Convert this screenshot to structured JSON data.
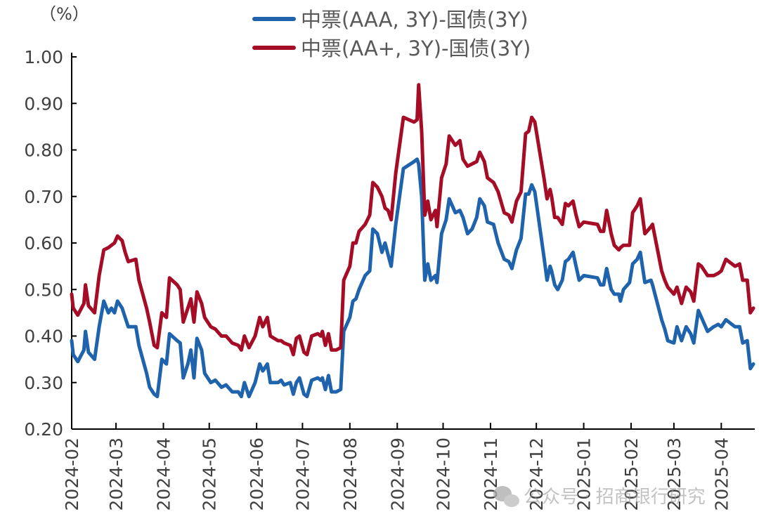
{
  "chart_data": {
    "type": "line",
    "title": "",
    "unit_label": "（%）",
    "xlabel": "",
    "ylabel": "",
    "ylim": [
      0.2,
      1.0
    ],
    "y_ticks": [
      "0.20",
      "0.30",
      "0.40",
      "0.50",
      "0.60",
      "0.70",
      "0.80",
      "0.90",
      "1.00"
    ],
    "x_range": [
      "2024-02-01",
      "2025-04-22"
    ],
    "x_ticks": [
      "2024-02",
      "2024-03",
      "2024-04",
      "2024-05",
      "2024-06",
      "2024-07",
      "2024-08",
      "2024-09",
      "2024-10",
      "2024-11",
      "2024-12",
      "2025-01",
      "2025-02",
      "2025-03",
      "2025-04"
    ],
    "grid": false,
    "legend_placement": "top",
    "x": [
      "2024-02-01",
      "2024-02-02",
      "2024-02-05",
      "2024-02-09",
      "2024-02-10",
      "2024-02-12",
      "2024-02-16",
      "2024-02-19",
      "2024-02-22",
      "2024-02-25",
      "2024-02-27",
      "2024-02-29",
      "2024-03-02",
      "2024-03-05",
      "2024-03-07",
      "2024-03-09",
      "2024-03-14",
      "2024-03-16",
      "2024-03-21",
      "2024-03-23",
      "2024-03-26",
      "2024-03-28",
      "2024-03-31",
      "2024-04-03",
      "2024-04-05",
      "2024-04-10",
      "2024-04-12",
      "2024-04-14",
      "2024-04-17",
      "2024-04-19",
      "2024-04-21",
      "2024-04-23",
      "2024-04-26",
      "2024-04-28",
      "2024-05-02",
      "2024-05-05",
      "2024-05-09",
      "2024-05-12",
      "2024-05-16",
      "2024-05-20",
      "2024-05-22",
      "2024-05-24",
      "2024-05-27",
      "2024-05-31",
      "2024-06-03",
      "2024-06-05",
      "2024-06-08",
      "2024-06-10",
      "2024-06-15",
      "2024-06-17",
      "2024-06-19",
      "2024-06-23",
      "2024-06-25",
      "2024-06-27",
      "2024-06-29",
      "2024-07-02",
      "2024-07-04",
      "2024-07-07",
      "2024-07-11",
      "2024-07-13",
      "2024-07-14",
      "2024-07-16",
      "2024-07-18",
      "2024-07-20",
      "2024-07-23",
      "2024-07-26",
      "2024-07-28",
      "2024-08-01",
      "2024-08-03",
      "2024-08-05",
      "2024-08-07",
      "2024-08-11",
      "2024-08-14",
      "2024-08-16",
      "2024-08-19",
      "2024-08-22",
      "2024-08-24",
      "2024-08-26",
      "2024-08-28",
      "2024-08-31",
      "2024-09-05",
      "2024-09-12",
      "2024-09-14",
      "2024-09-15",
      "2024-09-17",
      "2024-09-19",
      "2024-09-21",
      "2024-09-23",
      "2024-09-26",
      "2024-09-27",
      "2024-09-30",
      "2024-10-03",
      "2024-10-05",
      "2024-10-09",
      "2024-10-12",
      "2024-10-14",
      "2024-10-17",
      "2024-10-20",
      "2024-10-23",
      "2024-10-25",
      "2024-10-28",
      "2024-10-30",
      "2024-11-03",
      "2024-11-06",
      "2024-11-10",
      "2024-11-13",
      "2024-11-15",
      "2024-11-18",
      "2024-11-21",
      "2024-11-24",
      "2024-11-26",
      "2024-11-28",
      "2024-11-30",
      "2024-12-03",
      "2024-12-06",
      "2024-12-08",
      "2024-12-10",
      "2024-12-11",
      "2024-12-13",
      "2024-12-15",
      "2024-12-18",
      "2024-12-20",
      "2024-12-22",
      "2024-12-25",
      "2024-12-27",
      "2024-12-29",
      "2025-01-01",
      "2025-01-10",
      "2025-01-12",
      "2025-01-14",
      "2025-01-16",
      "2025-01-19",
      "2025-01-21",
      "2025-01-24",
      "2025-01-25",
      "2025-01-27",
      "2025-01-31",
      "2025-02-02",
      "2025-02-05",
      "2025-02-07",
      "2025-02-10",
      "2025-02-14",
      "2025-02-15",
      "2025-02-21",
      "2025-02-23",
      "2025-02-25",
      "2025-03-01",
      "2025-03-03",
      "2025-03-06",
      "2025-03-09",
      "2025-03-12",
      "2025-03-14",
      "2025-03-17",
      "2025-03-19",
      "2025-03-23",
      "2025-03-27",
      "2025-03-30",
      "2025-04-01",
      "2025-04-04",
      "2025-04-10",
      "2025-04-13",
      "2025-04-15",
      "2025-04-18",
      "2025-04-20",
      "2025-04-22"
    ],
    "series": [
      {
        "name": "中票(AAA, 3Y)-国债(3Y)",
        "color": "#1f63ad",
        "values": [
          0.39,
          0.36,
          0.345,
          0.37,
          0.41,
          0.365,
          0.35,
          0.42,
          0.475,
          0.45,
          0.46,
          0.45,
          0.475,
          0.46,
          0.44,
          0.42,
          0.42,
          0.38,
          0.32,
          0.29,
          0.275,
          0.27,
          0.35,
          0.34,
          0.405,
          0.39,
          0.385,
          0.31,
          0.34,
          0.37,
          0.31,
          0.395,
          0.37,
          0.32,
          0.3,
          0.305,
          0.29,
          0.295,
          0.28,
          0.28,
          0.27,
          0.3,
          0.27,
          0.3,
          0.34,
          0.325,
          0.34,
          0.3,
          0.3,
          0.305,
          0.295,
          0.3,
          0.275,
          0.3,
          0.31,
          0.275,
          0.27,
          0.305,
          0.31,
          0.305,
          0.31,
          0.285,
          0.315,
          0.28,
          0.28,
          0.285,
          0.41,
          0.44,
          0.475,
          0.48,
          0.5,
          0.53,
          0.54,
          0.63,
          0.62,
          0.58,
          0.6,
          0.575,
          0.55,
          0.64,
          0.76,
          0.775,
          0.78,
          0.77,
          0.7,
          0.52,
          0.555,
          0.52,
          0.53,
          0.515,
          0.62,
          0.65,
          0.695,
          0.665,
          0.67,
          0.655,
          0.62,
          0.63,
          0.655,
          0.695,
          0.68,
          0.645,
          0.64,
          0.6,
          0.565,
          0.56,
          0.545,
          0.585,
          0.61,
          0.705,
          0.705,
          0.725,
          0.71,
          0.64,
          0.57,
          0.52,
          0.55,
          0.54,
          0.51,
          0.5,
          0.52,
          0.56,
          0.565,
          0.58,
          0.55,
          0.52,
          0.53,
          0.525,
          0.51,
          0.51,
          0.545,
          0.5,
          0.49,
          0.49,
          0.475,
          0.5,
          0.515,
          0.555,
          0.565,
          0.58,
          0.515,
          0.52,
          0.51,
          0.435,
          0.415,
          0.39,
          0.385,
          0.42,
          0.39,
          0.42,
          0.405,
          0.385,
          0.455,
          0.44,
          0.41,
          0.42,
          0.425,
          0.42,
          0.435,
          0.42,
          0.42,
          0.385,
          0.39,
          0.33,
          0.34
        ]
      },
      {
        "name": "中票(AA+, 3Y)-国债(3Y)",
        "color": "#a50d26",
        "values": [
          0.49,
          0.46,
          0.445,
          0.47,
          0.51,
          0.465,
          0.45,
          0.53,
          0.585,
          0.59,
          0.595,
          0.6,
          0.615,
          0.605,
          0.58,
          0.56,
          0.565,
          0.52,
          0.46,
          0.43,
          0.38,
          0.375,
          0.45,
          0.44,
          0.525,
          0.51,
          0.5,
          0.43,
          0.46,
          0.48,
          0.43,
          0.495,
          0.47,
          0.44,
          0.42,
          0.415,
          0.4,
          0.4,
          0.385,
          0.38,
          0.37,
          0.4,
          0.375,
          0.4,
          0.44,
          0.42,
          0.44,
          0.4,
          0.39,
          0.39,
          0.385,
          0.38,
          0.36,
          0.395,
          0.4,
          0.365,
          0.36,
          0.4,
          0.405,
          0.4,
          0.41,
          0.38,
          0.405,
          0.37,
          0.37,
          0.375,
          0.52,
          0.55,
          0.6,
          0.6,
          0.625,
          0.64,
          0.66,
          0.73,
          0.72,
          0.7,
          0.675,
          0.67,
          0.65,
          0.75,
          0.87,
          0.86,
          0.865,
          0.94,
          0.84,
          0.66,
          0.69,
          0.65,
          0.67,
          0.635,
          0.74,
          0.77,
          0.83,
          0.81,
          0.82,
          0.78,
          0.765,
          0.77,
          0.775,
          0.795,
          0.775,
          0.74,
          0.73,
          0.71,
          0.665,
          0.66,
          0.645,
          0.69,
          0.71,
          0.835,
          0.84,
          0.87,
          0.86,
          0.8,
          0.74,
          0.695,
          0.715,
          0.7,
          0.655,
          0.655,
          0.64,
          0.685,
          0.68,
          0.69,
          0.66,
          0.635,
          0.645,
          0.64,
          0.625,
          0.625,
          0.67,
          0.62,
          0.595,
          0.585,
          0.59,
          0.595,
          0.595,
          0.665,
          0.68,
          0.695,
          0.62,
          0.635,
          0.64,
          0.54,
          0.52,
          0.505,
          0.49,
          0.505,
          0.47,
          0.505,
          0.495,
          0.475,
          0.555,
          0.55,
          0.53,
          0.53,
          0.535,
          0.54,
          0.565,
          0.55,
          0.555,
          0.52,
          0.52,
          0.45,
          0.46
        ]
      }
    ]
  },
  "watermark": {
    "text": "公众号 · 招商银行研究",
    "icon": "wechat-icon"
  }
}
